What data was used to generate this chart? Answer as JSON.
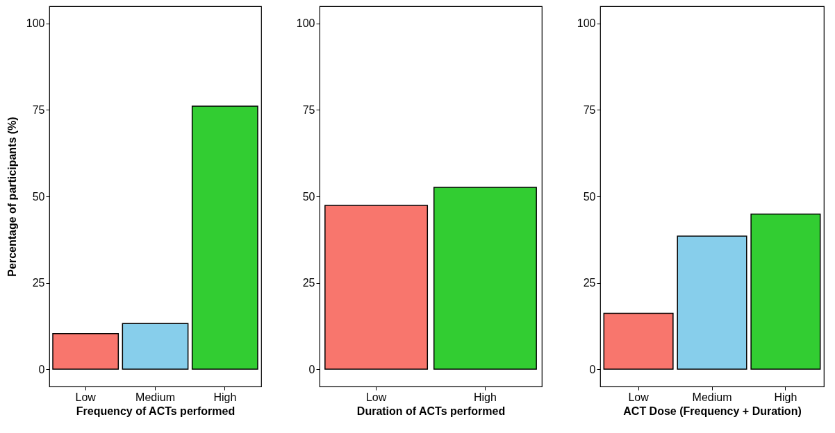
{
  "chart_data": [
    {
      "type": "bar",
      "categories": [
        "Low",
        "Medium",
        "High"
      ],
      "values": [
        10.3,
        13.2,
        76.1
      ],
      "colors": [
        "#f8766d",
        "#87ceeb",
        "#32cd32"
      ],
      "xlabel": "Frequency of ACTs performed",
      "ylabel": "Percentage of participants (%)",
      "ylim": [
        -5,
        105
      ],
      "yticks": [
        0,
        25,
        50,
        75,
        100
      ]
    },
    {
      "type": "bar",
      "categories": [
        "Low",
        "High"
      ],
      "values": [
        47.4,
        52.6
      ],
      "colors": [
        "#f8766d",
        "#32cd32"
      ],
      "xlabel": "Duration of ACTs performed",
      "ylim": [
        -5,
        105
      ],
      "yticks": [
        0,
        25,
        50,
        75,
        100
      ]
    },
    {
      "type": "bar",
      "categories": [
        "Low",
        "Medium",
        "High"
      ],
      "values": [
        16.2,
        38.5,
        44.9
      ],
      "colors": [
        "#f8766d",
        "#87ceeb",
        "#32cd32"
      ],
      "xlabel": "ACT Dose (Frequency + Duration)",
      "ylim": [
        -5,
        105
      ],
      "yticks": [
        0,
        25,
        50,
        75,
        100
      ]
    }
  ]
}
